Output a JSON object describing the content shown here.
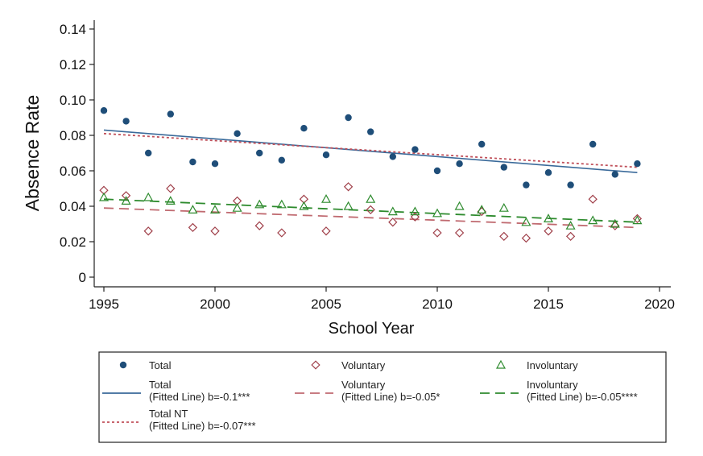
{
  "chart_data": {
    "type": "scatter",
    "title": "",
    "xlabel": "School Year",
    "ylabel": "Absence Rate",
    "xlim": [
      1995,
      2020
    ],
    "ylim": [
      0,
      0.14
    ],
    "xticks": [
      "1995",
      "2000",
      "2005",
      "2010",
      "2015",
      "2020"
    ],
    "yticks": [
      "0",
      "0.02",
      "0.04",
      "0.06",
      "0.08",
      "0.10",
      "0.12",
      "0.14"
    ],
    "grid": false,
    "legend_position": "bottom",
    "x": [
      1995,
      1996,
      1997,
      1998,
      1999,
      2000,
      2001,
      2002,
      2003,
      2004,
      2005,
      2006,
      2007,
      2008,
      2009,
      2010,
      2011,
      2012,
      2013,
      2014,
      2015,
      2016,
      2017,
      2018,
      2019
    ],
    "series": [
      {
        "name": "Total",
        "marker": "circle",
        "color": "#1f4e79",
        "values": [
          0.094,
          0.088,
          0.07,
          0.092,
          0.065,
          0.064,
          0.081,
          0.07,
          0.066,
          0.084,
          0.069,
          0.09,
          0.082,
          0.068,
          0.072,
          0.06,
          0.064,
          0.075,
          0.062,
          0.052,
          0.059,
          0.052,
          0.075,
          0.058,
          0.064
        ]
      },
      {
        "name": "Voluntary",
        "marker": "diamond",
        "color": "#a0404a",
        "values": [
          0.049,
          0.046,
          0.026,
          0.05,
          0.028,
          0.026,
          0.043,
          0.029,
          0.025,
          0.044,
          0.026,
          0.051,
          0.038,
          0.031,
          0.034,
          0.025,
          0.025,
          0.037,
          0.023,
          0.022,
          0.026,
          0.023,
          0.044,
          0.029,
          0.033
        ]
      },
      {
        "name": "Involuntary",
        "marker": "triangle",
        "color": "#2e8b2e",
        "values": [
          0.045,
          0.043,
          0.045,
          0.043,
          0.038,
          0.038,
          0.039,
          0.041,
          0.041,
          0.04,
          0.044,
          0.04,
          0.044,
          0.037,
          0.037,
          0.036,
          0.04,
          0.038,
          0.039,
          0.031,
          0.033,
          0.029,
          0.032,
          0.03,
          0.032
        ]
      }
    ],
    "fitted_lines": [
      {
        "name": "Total",
        "sub": "(Fitted Line) b=-0.1***",
        "style": "solid",
        "color": "#3a6a9a",
        "x": [
          1995,
          2019
        ],
        "y": [
          0.083,
          0.059
        ]
      },
      {
        "name": "Total NT",
        "sub": "(Fitted Line) b=-0.07***",
        "style": "dotted",
        "color": "#c0505a",
        "x": [
          1995,
          2019
        ],
        "y": [
          0.081,
          0.062
        ]
      },
      {
        "name": "Voluntary",
        "sub": "(Fitted Line) b=-0.05*",
        "style": "dashed",
        "color": "#c06a70",
        "x": [
          1995,
          2019
        ],
        "y": [
          0.039,
          0.028
        ]
      },
      {
        "name": "Involuntary",
        "sub": "(Fitted Line) b=-0.05****",
        "style": "dashed",
        "color": "#2e8b2e",
        "x": [
          1995,
          2019
        ],
        "y": [
          0.044,
          0.031
        ]
      }
    ]
  }
}
